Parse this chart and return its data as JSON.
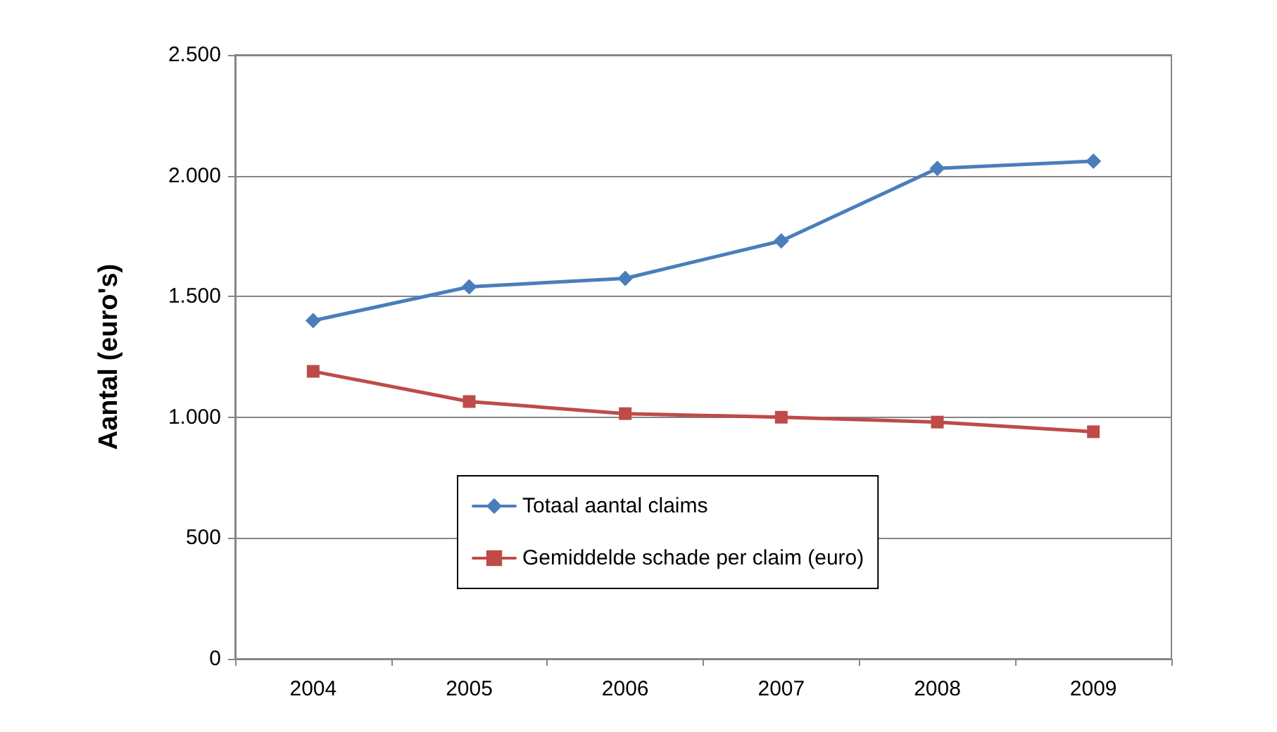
{
  "chart_data": {
    "type": "line",
    "ylabel": "Aantal (euro's)",
    "categories": [
      "2004",
      "2005",
      "2006",
      "2007",
      "2008",
      "2009"
    ],
    "series": [
      {
        "name": "Totaal aantal claims",
        "color": "#4a7ebb",
        "marker": "diamond",
        "values": [
          1400,
          1540,
          1575,
          1730,
          2030,
          2060
        ]
      },
      {
        "name": "Gemiddelde schade per claim (euro)",
        "color": "#be4b48",
        "marker": "square",
        "values": [
          1190,
          1065,
          1015,
          1000,
          980,
          940
        ]
      }
    ],
    "ylim": [
      0,
      2500
    ],
    "yticks": [
      0,
      500,
      {
        "value": 1000,
        "label": "1.000"
      },
      {
        "value": 1500,
        "label": "1.500"
      },
      {
        "value": 2000,
        "label": "2.000"
      },
      {
        "value": 2500,
        "label": "2.500"
      }
    ],
    "grid": "y",
    "legend": "bottom",
    "line_style": "solid"
  }
}
